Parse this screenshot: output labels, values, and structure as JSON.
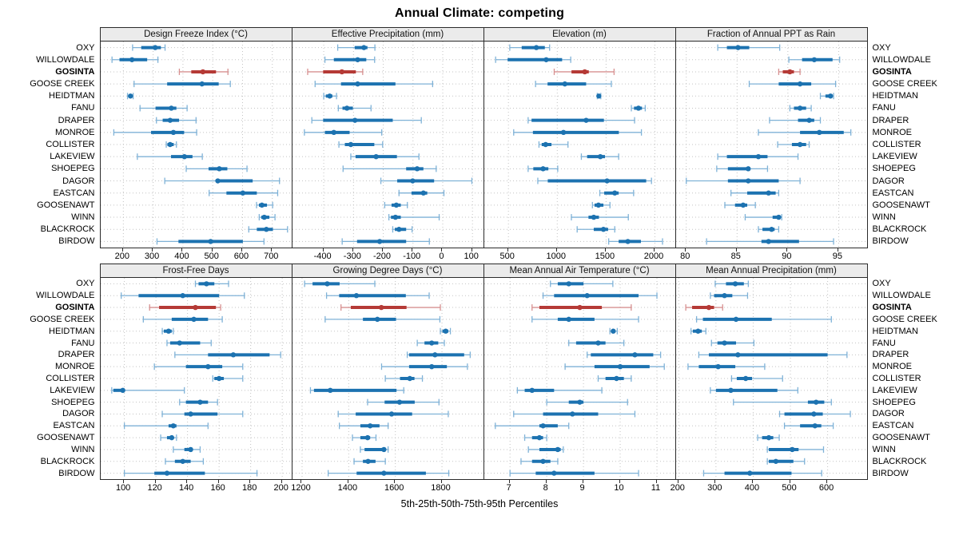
{
  "title": "Annual Climate: competing",
  "footer": "5th-25th-50th-75th-95th Percentiles",
  "colors": {
    "series_main": "#1c72b0",
    "series_light": "#7fb2d7",
    "highlight_main": "#b53a36",
    "highlight_light": "#d79090",
    "grid": "#c3c3c3",
    "strip_bg": "#ebebeb",
    "border": "#2a2a2a"
  },
  "chart_data": {
    "type": "dotplot-intervals",
    "percentiles": [
      5,
      25,
      50,
      75,
      95
    ],
    "legend_note": "whisker = 5th-95th, thick bar = 25th-75th, dot = median",
    "highlight_site": "GOSINTA",
    "sites": [
      "OXY",
      "WILLOWDALE",
      "GOSINTA",
      "GOOSE CREEK",
      "HEIDTMAN",
      "FANU",
      "DRAPER",
      "MONROE",
      "COLLISTER",
      "LAKEVIEW",
      "SHOEPEG",
      "DAGOR",
      "EASTCAN",
      "GOOSENAWT",
      "WINN",
      "BLACKROCK",
      "BIRDOW"
    ],
    "panels": [
      {
        "title": "Design Freeze Index (°C)",
        "ticks": [
          200,
          300,
          400,
          500,
          600,
          700
        ],
        "range": [
          124,
          765
        ],
        "values": [
          [
            231,
            260,
            307,
            326,
            340
          ],
          [
            162,
            187,
            229,
            280,
            316
          ],
          [
            388,
            428,
            467,
            511,
            551
          ],
          [
            236,
            347,
            464,
            520,
            559
          ],
          [
            214,
            219,
            224,
            228,
            233
          ],
          [
            256,
            308,
            361,
            378,
            414
          ],
          [
            311,
            332,
            357,
            387,
            444
          ],
          [
            168,
            293,
            368,
            404,
            446
          ],
          [
            344,
            348,
            357,
            369,
            378
          ],
          [
            247,
            360,
            405,
            432,
            465
          ],
          [
            411,
            486,
            522,
            549,
            615
          ],
          [
            339,
            510,
            517,
            634,
            724
          ],
          [
            488,
            546,
            601,
            648,
            718
          ],
          [
            647,
            655,
            665,
            682,
            701
          ],
          [
            656,
            663,
            673,
            690,
            709
          ],
          [
            621,
            648,
            680,
            702,
            751
          ],
          [
            313,
            385,
            493,
            601,
            672
          ]
        ]
      },
      {
        "title": "Effective Precipitation (mm)",
        "ticks": [
          -400,
          -300,
          -200,
          -100,
          0,
          100
        ],
        "range": [
          -505,
          137
        ],
        "values": [
          [
            -353,
            -296,
            -265,
            -253,
            -228
          ],
          [
            -396,
            -366,
            -286,
            -257,
            -229
          ],
          [
            -454,
            -402,
            -339,
            -292,
            -269
          ],
          [
            -429,
            -342,
            -286,
            -159,
            -34
          ],
          [
            -400,
            -393,
            -380,
            -371,
            -357
          ],
          [
            -351,
            -337,
            -322,
            -302,
            -241
          ],
          [
            -440,
            -402,
            -295,
            -168,
            -72
          ],
          [
            -465,
            -396,
            -366,
            -313,
            -205
          ],
          [
            -349,
            -329,
            -309,
            -230,
            -202
          ],
          [
            -309,
            -293,
            -224,
            -154,
            -80
          ],
          [
            -335,
            -123,
            -86,
            -65,
            -22
          ],
          [
            -208,
            -153,
            -101,
            -29,
            98
          ],
          [
            -147,
            -105,
            -65,
            -52,
            4
          ],
          [
            -195,
            -172,
            -156,
            -141,
            -119
          ],
          [
            -181,
            -174,
            -159,
            -141,
            -12
          ],
          [
            -168,
            -161,
            -147,
            -123,
            -103
          ],
          [
            -338,
            -288,
            -212,
            -123,
            -45
          ]
        ]
      },
      {
        "title": "Elevation (m)",
        "ticks": [
          500,
          1000,
          1500,
          2000
        ],
        "range": [
          253,
          2209
        ],
        "values": [
          [
            514,
            636,
            786,
            873,
            922
          ],
          [
            369,
            492,
            887,
            1050,
            1138
          ],
          [
            969,
            1146,
            1282,
            1323,
            1582
          ],
          [
            778,
            901,
            1078,
            1296,
            1554
          ],
          [
            1410,
            1418,
            1426,
            1436,
            1446
          ],
          [
            1759,
            1786,
            1832,
            1868,
            1901
          ],
          [
            702,
            737,
            1296,
            1478,
            1792
          ],
          [
            554,
            751,
            1064,
            1631,
            1862
          ],
          [
            813,
            841,
            881,
            941,
            1110
          ],
          [
            1247,
            1306,
            1441,
            1489,
            1629
          ],
          [
            702,
            755,
            855,
            909,
            1005
          ],
          [
            801,
            903,
            1510,
            1911,
            1965
          ],
          [
            1436,
            1481,
            1589,
            1629,
            1782
          ],
          [
            1360,
            1382,
            1422,
            1473,
            1540
          ],
          [
            1145,
            1320,
            1374,
            1427,
            1728
          ],
          [
            1204,
            1374,
            1473,
            1521,
            1589
          ],
          [
            1527,
            1629,
            1723,
            1857,
            2078
          ]
        ]
      },
      {
        "title": "Fraction of Annual PPT as Rain",
        "ticks": [
          80,
          85,
          90,
          95
        ],
        "range": [
          79,
          97.8
        ],
        "values": [
          [
            83.1,
            84.0,
            85.1,
            86.2,
            89.2
          ],
          [
            90.1,
            91.4,
            92.6,
            94.4,
            95.1
          ],
          [
            89.1,
            89.5,
            90.2,
            90.6,
            91.2
          ],
          [
            86.2,
            89.1,
            91.2,
            92.3,
            94.7
          ],
          [
            93.2,
            93.7,
            94.2,
            94.4,
            94.5
          ],
          [
            90.2,
            90.6,
            91.2,
            91.8,
            92.3
          ],
          [
            88.2,
            91.0,
            92.1,
            92.6,
            93.2
          ],
          [
            87.1,
            91.2,
            93.1,
            95.5,
            96.2
          ],
          [
            89.0,
            90.4,
            91.2,
            91.8,
            92.1
          ],
          [
            83.1,
            84.0,
            87.1,
            88.0,
            91.0
          ],
          [
            83.0,
            84.1,
            86.1,
            86.3,
            88.0
          ],
          [
            80.0,
            84.1,
            86.1,
            89.1,
            91.2
          ],
          [
            84.4,
            86.0,
            88.1,
            88.8,
            89.1
          ],
          [
            83.8,
            84.8,
            85.6,
            86.0,
            86.8
          ],
          [
            85.8,
            88.5,
            89.1,
            89.3,
            89.4
          ],
          [
            87.1,
            87.5,
            88.4,
            88.7,
            89.1
          ],
          [
            82.0,
            87.4,
            88.1,
            91.1,
            94.5
          ]
        ]
      },
      {
        "title": "Frost-Free Days",
        "ticks": [
          100,
          120,
          140,
          160,
          180,
          200
        ],
        "range": [
          85,
          206
        ],
        "values": [
          [
            145,
            147,
            152,
            157,
            166
          ],
          [
            98,
            109,
            137,
            160,
            176
          ],
          [
            116,
            122,
            145,
            158,
            161
          ],
          [
            112,
            130,
            144,
            153,
            162
          ],
          [
            124,
            125,
            128,
            130,
            131
          ],
          [
            127,
            129,
            135,
            148,
            155
          ],
          [
            132,
            153,
            169,
            192,
            199
          ],
          [
            119,
            139,
            153,
            162,
            175
          ],
          [
            156,
            157,
            160,
            163,
            175
          ],
          [
            92,
            93,
            99,
            100,
            138
          ],
          [
            135,
            139,
            148,
            153,
            159
          ],
          [
            124,
            138,
            142,
            159,
            175
          ],
          [
            100,
            128,
            131,
            133,
            153
          ],
          [
            123,
            127,
            130,
            131,
            133
          ],
          [
            131,
            138,
            142,
            143,
            148
          ],
          [
            126,
            132,
            137,
            142,
            150
          ],
          [
            100,
            119,
            127,
            151,
            184
          ]
        ]
      },
      {
        "title": "Growing Degree Days (°C)",
        "ticks": [
          1200,
          1400,
          1600,
          1800
        ],
        "range": [
          1159,
          1978
        ],
        "values": [
          [
            1211,
            1245,
            1308,
            1361,
            1512
          ],
          [
            1305,
            1359,
            1433,
            1645,
            1745
          ],
          [
            1367,
            1409,
            1540,
            1648,
            1793
          ],
          [
            1299,
            1461,
            1523,
            1603,
            1791
          ],
          [
            1793,
            1802,
            1816,
            1827,
            1836
          ],
          [
            1694,
            1725,
            1756,
            1784,
            1810
          ],
          [
            1651,
            1659,
            1770,
            1895,
            1921
          ],
          [
            1541,
            1659,
            1756,
            1821,
            1909
          ],
          [
            1557,
            1620,
            1662,
            1682,
            1716
          ],
          [
            1236,
            1251,
            1321,
            1605,
            1636
          ],
          [
            1481,
            1554,
            1618,
            1683,
            1787
          ],
          [
            1355,
            1430,
            1584,
            1672,
            1827
          ],
          [
            1360,
            1450,
            1492,
            1532,
            1569
          ],
          [
            1416,
            1450,
            1481,
            1492,
            1517
          ],
          [
            1450,
            1468,
            1551,
            1557,
            1569
          ],
          [
            1423,
            1461,
            1483,
            1515,
            1557
          ],
          [
            1312,
            1434,
            1551,
            1731,
            1829
          ]
        ]
      },
      {
        "title": "Mean Annual Air Temperature (°C)",
        "ticks": [
          7,
          8,
          9,
          10,
          11
        ],
        "range": [
          6.3,
          11.5
        ],
        "values": [
          [
            8.1,
            8.3,
            8.6,
            9.0,
            9.8
          ],
          [
            7.9,
            8.2,
            9.1,
            10.5,
            11.0
          ],
          [
            7.6,
            7.8,
            8.9,
            9.5,
            10.3
          ],
          [
            7.6,
            8.3,
            8.6,
            9.3,
            10.5
          ],
          [
            9.72,
            9.76,
            9.81,
            9.87,
            9.92
          ],
          [
            8.6,
            8.8,
            9.4,
            9.6,
            10.1
          ],
          [
            9.1,
            9.2,
            10.4,
            10.9,
            11.1
          ],
          [
            8.5,
            9.3,
            10.0,
            10.8,
            11.2
          ],
          [
            9.4,
            9.6,
            9.9,
            10.1,
            10.3
          ],
          [
            7.2,
            7.4,
            7.6,
            8.2,
            9.5
          ],
          [
            8.0,
            8.6,
            8.9,
            9.0,
            10.2
          ],
          [
            7.1,
            7.9,
            8.7,
            9.4,
            10.4
          ],
          [
            6.6,
            7.8,
            7.9,
            8.3,
            8.6
          ],
          [
            7.4,
            7.6,
            7.8,
            7.9,
            8.0
          ],
          [
            7.5,
            7.8,
            8.3,
            8.38,
            8.45
          ],
          [
            7.3,
            7.6,
            7.9,
            8.1,
            8.3
          ],
          [
            7.0,
            7.7,
            8.2,
            9.3,
            10.5
          ]
        ]
      },
      {
        "title": "Mean Annual Precipitation (mm)",
        "ticks": [
          200,
          300,
          400,
          500,
          600
        ],
        "range": [
          193,
          706
        ],
        "values": [
          [
            298,
            327,
            352,
            375,
            387
          ],
          [
            285,
            295,
            323,
            344,
            385
          ],
          [
            219,
            236,
            281,
            295,
            318
          ],
          [
            248,
            265,
            354,
            450,
            610
          ],
          [
            233,
            238,
            252,
            262,
            273
          ],
          [
            288,
            304,
            323,
            354,
            402
          ],
          [
            254,
            281,
            359,
            600,
            652
          ],
          [
            225,
            254,
            306,
            352,
            431
          ],
          [
            342,
            356,
            380,
            397,
            479
          ],
          [
            285,
            300,
            340,
            465,
            520
          ],
          [
            347,
            547,
            569,
            591,
            610
          ],
          [
            471,
            484,
            563,
            587,
            661
          ],
          [
            484,
            526,
            566,
            583,
            615
          ],
          [
            412,
            424,
            442,
            454,
            470
          ],
          [
            438,
            442,
            505,
            522,
            589
          ],
          [
            438,
            442,
            461,
            508,
            538
          ],
          [
            267,
            323,
            391,
            503,
            584
          ]
        ]
      }
    ]
  }
}
